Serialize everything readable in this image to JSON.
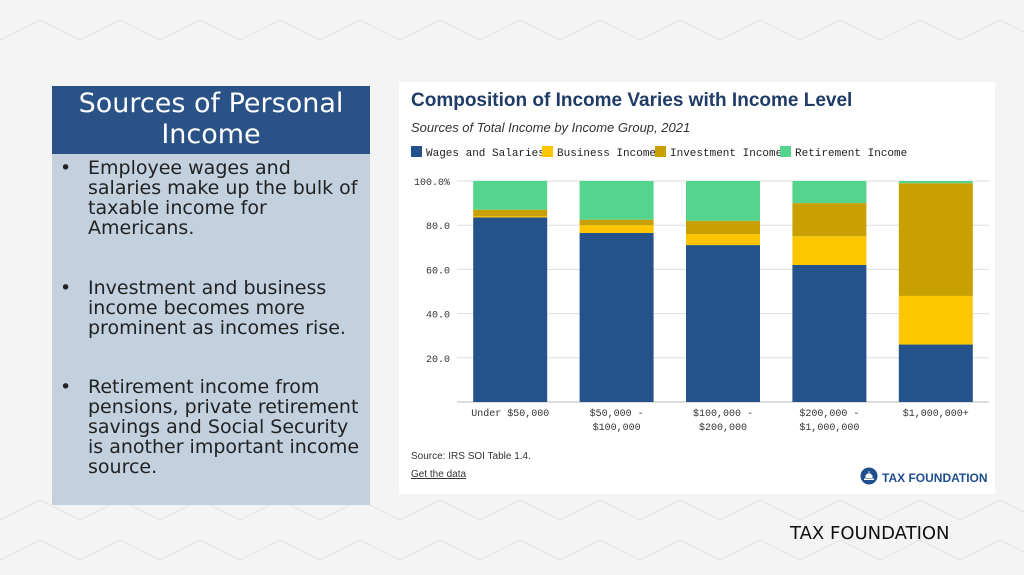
{
  "slide": {
    "title": "Sources of Personal Income",
    "bullets": [
      "Employee wages and salaries make up the bulk of taxable income for Americans.",
      "Investment and business income becomes more prominent as incomes rise.",
      "Retirement income from pensions, private retirement savings and Social Security is another important income source."
    ],
    "footer": "TAX FOUNDATION"
  },
  "card": {
    "source": "Source: IRS SOI Table 1.4.",
    "get_data": "Get the data",
    "logo_text": "TAX FOUNDATION",
    "logo_icon": "capitol-dome-icon"
  },
  "chart_data": {
    "type": "bar",
    "stacked": true,
    "title": "Composition of Income Varies with Income Level",
    "subtitle": "Sources of Total Income by Income Group, 2021",
    "categories": [
      [
        "Under $50,000"
      ],
      [
        "$50,000 -",
        "$100,000"
      ],
      [
        "$100,000 -",
        "$200,000"
      ],
      [
        "$200,000 -",
        "$1,000,000"
      ],
      [
        "$1,000,000+"
      ]
    ],
    "series": [
      {
        "name": "Wages and Salaries",
        "color": "#24528a",
        "values": [
          83.5,
          76.5,
          71.0,
          62.0,
          26.0
        ]
      },
      {
        "name": "Business Income",
        "color": "#fdc600",
        "values": [
          0.5,
          3.5,
          5.0,
          13.0,
          22.0
        ]
      },
      {
        "name": "Investment Income",
        "color": "#c9a002",
        "values": [
          3.0,
          2.5,
          6.0,
          15.0,
          51.0
        ]
      },
      {
        "name": "Retirement Income",
        "color": "#55d48e",
        "values": [
          13.0,
          17.5,
          18.0,
          10.0,
          1.0
        ]
      }
    ],
    "yticks": [
      "20.0",
      "40.0",
      "60.0",
      "80.0",
      "100.0%"
    ],
    "ytick_values": [
      20,
      40,
      60,
      80,
      100
    ],
    "ylim": [
      0,
      100
    ],
    "grid": true,
    "legend": "top-left"
  }
}
